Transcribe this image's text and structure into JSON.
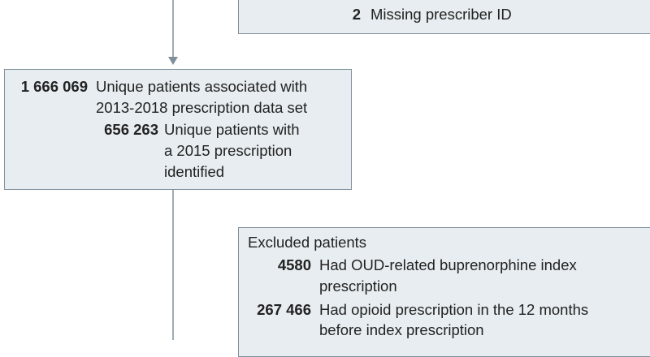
{
  "top_box": {
    "items": [
      {
        "count": "2",
        "label": [
          "Missing prescriber ID"
        ]
      }
    ]
  },
  "cohort_box": {
    "count": "1 666 069",
    "label": [
      "Unique patients associated with",
      "2013-2018 prescription data set"
    ],
    "items": [
      {
        "count": "656 263",
        "label": [
          "Unique patients with",
          "a 2015 prescription",
          "identified"
        ]
      }
    ]
  },
  "excluded_box": {
    "title": "Excluded patients",
    "items": [
      {
        "count": "4580",
        "label": [
          "Had OUD-related buprenorphine index",
          "prescription"
        ]
      },
      {
        "count": "267 466",
        "label": [
          "Had opioid prescription in the 12 months",
          "before index prescription"
        ]
      }
    ]
  }
}
